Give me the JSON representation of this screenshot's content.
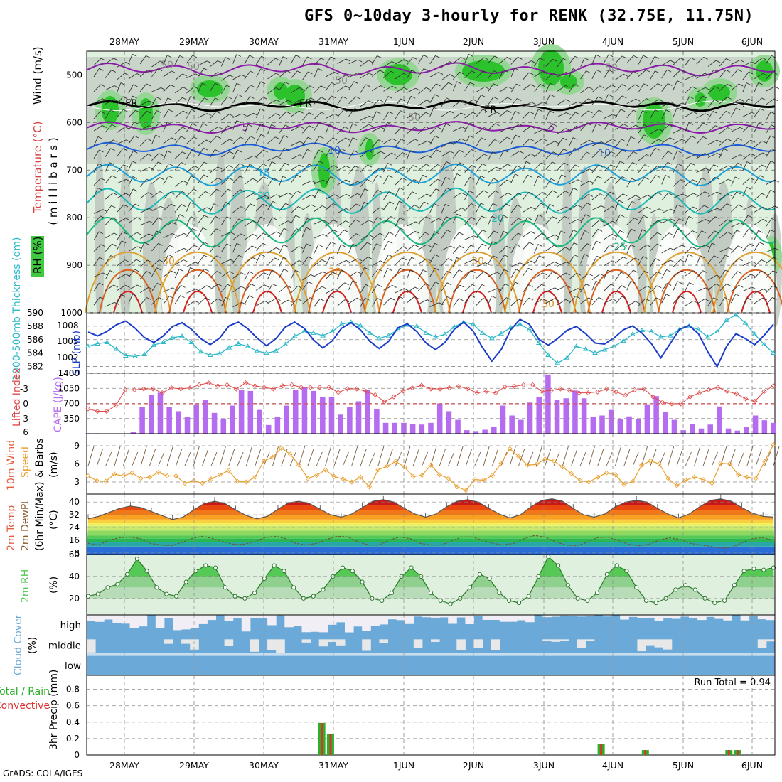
{
  "title": "GFS 0~10day 3-hourly for RENK (32.75E, 11.75N)",
  "credit": "GrADS: COLA/IGES",
  "dates": [
    "28MAY",
    "29MAY",
    "30MAY",
    "31MAY",
    "1JUN",
    "2JUN",
    "3JUN",
    "4JUN",
    "5JUN",
    "6JUN"
  ],
  "colors": {
    "rh_dark": "#2bc22b",
    "rh_mid": "#8fd68f",
    "rh_light": "#dff0df",
    "gray_band": "#b8c0b8",
    "slp": "#1a3cc8",
    "thickness": "#2ab8c8",
    "lifted": "#e04848",
    "cape": "#b66cf0",
    "wind": "#e8a030",
    "rh2m": "#55c855",
    "cloud": "#6baad8",
    "precip_total": "#2bb02b",
    "precip_conv": "#e03030"
  },
  "chart_data": [
    {
      "panel": "upper_air",
      "type": "heatmap",
      "ylabel_parts": [
        "RH (%)",
        "Temperature (°C)",
        "Wind (m/s)"
      ],
      "ylabel_units": "( m i l l i b a r s )",
      "yticks": [
        "500",
        "600",
        "700",
        "800",
        "900",
        "1000"
      ],
      "ylim": [
        1000,
        450
      ],
      "contour_labels": [
        "FR",
        "FR",
        "FR",
        "5",
        "5",
        "10",
        "10",
        "15",
        "20",
        "20",
        "25",
        "30",
        "30",
        "30",
        "30",
        "50",
        "50",
        "50",
        "50",
        "50"
      ]
    },
    {
      "panel": "slp_thickness",
      "type": "line",
      "ylabel_left": "1000-500mb Thickness (dm)",
      "ylabel_right": "SLP (mb)",
      "yticks_left": [
        "582",
        "584",
        "586",
        "588",
        "590"
      ],
      "yticks_right": [
        "1002",
        "1005",
        "1008"
      ],
      "ylim_left": [
        581,
        590
      ],
      "series": [
        {
          "name": "SLP (mb)",
          "axis": "right",
          "values": [
            1007.5,
            1006.8,
            1007.6,
            1008.8,
            1009.5,
            1008.2,
            1006.5,
            1005.6,
            1006.8,
            1008.5,
            1009.2,
            1008.0,
            1006.3,
            1005.2,
            1006.4,
            1008.6,
            1009.3,
            1008.1,
            1006.4,
            1005.0,
            1006.3,
            1008.4,
            1009.3,
            1008.2,
            1006.1,
            1004.6,
            1005.9,
            1008.2,
            1009.2,
            1007.9,
            1005.8,
            1004.5,
            1005.8,
            1008.3,
            1009.0,
            1007.6,
            1005.5,
            1004.3,
            1005.6,
            1008.0,
            1009.3,
            1007.7,
            1004.7,
            1002.2,
            1004.3,
            1007.9,
            1009.8,
            1008.9,
            1006.2,
            1005.1,
            1006.3,
            1007.8,
            1008.5,
            1007.2,
            1005.5,
            1005.3,
            1006.4,
            1007.9,
            1008.6,
            1007.3,
            1005.4,
            1002.8,
            1005.4,
            1008.0,
            1008.7,
            1007.2,
            1003.9,
            1001.2,
            1004.9,
            1007.2,
            1006.3,
            1005.2,
            1006.9,
            1008.9
          ]
        },
        {
          "name": "1000-500mb Thickness (dm)",
          "axis": "left",
          "values": [
            585.0,
            585.4,
            585.6,
            584.6,
            583.6,
            583.5,
            583.8,
            585.2,
            585.6,
            586.3,
            586.5,
            585.6,
            584.2,
            583.7,
            583.9,
            584.8,
            585.4,
            585.0,
            584.3,
            584.0,
            584.3,
            585.3,
            586.5,
            587.2,
            587.0,
            586.6,
            587.2,
            588.3,
            588.6,
            588.1,
            587.0,
            586.2,
            586.6,
            587.5,
            588.2,
            588.0,
            587.0,
            586.4,
            586.8,
            587.9,
            588.6,
            588.3,
            587.0,
            586.2,
            586.9,
            587.8,
            588.3,
            587.5,
            585.5,
            583.7,
            582.5,
            583.3,
            585.0,
            584.6,
            584.0,
            584.5,
            585.0,
            585.8,
            586.8,
            587.4,
            587.2,
            586.4,
            586.6,
            587.5,
            588.0,
            587.5,
            586.4,
            587.2,
            588.9,
            589.7,
            588.5,
            586.8,
            585.3,
            584.0
          ]
        }
      ]
    },
    {
      "panel": "lifted_cape",
      "type": "bar",
      "ylabel_left": "Lifted Index",
      "ylabel_right": "CAPE (J/kg)",
      "yticks_left": [
        "-3",
        "0",
        "3",
        "6"
      ],
      "yticks_right": [
        "350",
        "700",
        "1050",
        "1400"
      ],
      "ylim_cape": [
        0,
        1400
      ],
      "series": [
        {
          "name": "CAPE (J/kg)",
          "values": [
            10,
            10,
            0,
            0,
            0,
            50,
            620,
            900,
            950,
            620,
            520,
            380,
            680,
            780,
            480,
            330,
            650,
            1010,
            990,
            550,
            200,
            380,
            650,
            1020,
            1080,
            990,
            850,
            850,
            440,
            620,
            750,
            1010,
            560,
            250,
            250,
            250,
            230,
            210,
            250,
            700,
            520,
            320,
            80,
            60,
            90,
            160,
            650,
            420,
            320,
            720,
            850,
            1370,
            780,
            820,
            1000,
            820,
            380,
            420,
            550,
            330,
            400,
            330,
            680,
            870,
            500,
            320,
            80,
            230,
            120,
            210,
            630,
            120,
            70,
            150,
            420,
            310,
            250
          ]
        },
        {
          "name": "Lifted Index",
          "values": [
            1.0,
            1.5,
            1.5,
            0.3,
            -2.8,
            -2.8,
            -3.0,
            -3.0,
            -2.2,
            -3.2,
            -3.0,
            -3.2,
            -3.8,
            -4.2,
            -3.6,
            -3.8,
            -3.0,
            -4.2,
            -3.6,
            -3.3,
            -3.0,
            -3.6,
            -3.8,
            -3.3,
            -3.3,
            -3.3,
            -3.3,
            -2.3,
            -3.0,
            -3.0,
            -2.5,
            -1.8,
            -0.4,
            -1.4,
            -2.6,
            -3.2,
            -3.7,
            -3.0,
            -3.0,
            -3.2,
            -3.5,
            -3.0,
            -2.2,
            -2.5,
            -2.2,
            -3.4,
            -3.5,
            -3.8,
            -3.8,
            -2.5,
            -2.7,
            -3.0,
            -2.7,
            -2.2,
            -2.2,
            -2.4,
            -3.0,
            -2.4,
            -1.7,
            -2.8,
            -3.0,
            -1.4,
            -0.3,
            0.0,
            0.0,
            -1.4,
            -2.2,
            -2.8,
            -3.3,
            -2.5,
            -2.0,
            -1.0,
            -0.5,
            -2.5,
            -3.6
          ]
        }
      ]
    },
    {
      "panel": "wind10m",
      "type": "line",
      "ylabel": "10m Wind Speed & Barbs (m/s)",
      "yticks": [
        "3",
        "6",
        "9"
      ],
      "ylim": [
        1,
        11
      ],
      "series": [
        {
          "name": "10m Wind Speed",
          "values": [
            4.0,
            3.2,
            3.1,
            4.3,
            4.0,
            4.5,
            3.6,
            3.8,
            4.6,
            4.0,
            4.0,
            2.8,
            3.2,
            2.8,
            3.5,
            4.2,
            4.9,
            3.1,
            3.0,
            3.8,
            6.5,
            7.1,
            8.6,
            7.6,
            5.8,
            3.6,
            4.1,
            5.0,
            3.9,
            3.5,
            3.0,
            3.8,
            2.2,
            5.0,
            5.6,
            6.4,
            5.5,
            3.9,
            4.1,
            5.8,
            4.2,
            3.6,
            2.2,
            1.6,
            3.4,
            3.3,
            4.1,
            6.1,
            8.5,
            7.2,
            5.8,
            5.9,
            6.8,
            6.5,
            5.5,
            4.4,
            3.2,
            3.0,
            3.8,
            4.5,
            4.2,
            2.6,
            3.1,
            5.8,
            6.5,
            6.0,
            3.6,
            2.4,
            3.3,
            3.8,
            3.4,
            2.8,
            6.1,
            6.0,
            4.2,
            3.8,
            3.6,
            6.4,
            9.2
          ]
        }
      ]
    },
    {
      "panel": "temp2m",
      "type": "area",
      "ylabel": "2m Temp / 2m DewPt (6hr Min/Max) (°C)",
      "yticks": [
        "8",
        "16",
        "24",
        "32",
        "40"
      ],
      "ylim": [
        7,
        45
      ],
      "series": [
        {
          "name": "2m Temp",
          "values": [
            29.5,
            31,
            33.5,
            36,
            37.5,
            36.5,
            34,
            31.5,
            29,
            30.5,
            35,
            39,
            40.5,
            39,
            35,
            31.5,
            29.5,
            31,
            35.5,
            39.5,
            40.5,
            39,
            35.5,
            32,
            30.5,
            32.5,
            36.5,
            40.5,
            41.5,
            40,
            36,
            32.5,
            30.5,
            32.5,
            37,
            40.5,
            41.5,
            40,
            36,
            32.5,
            30,
            32,
            37,
            41,
            42,
            40.5,
            36,
            32,
            30.5,
            32.5,
            37,
            40,
            41,
            40,
            36,
            32.5,
            30,
            32.5,
            37,
            41,
            42,
            40.5,
            36.5,
            33,
            31,
            30.5
          ]
        },
        {
          "name": "2m DewPt",
          "values": [
            14,
            13,
            16,
            17.5,
            18,
            17,
            14,
            13,
            12.5,
            14.5,
            17,
            18.5,
            17,
            15,
            13.5,
            13.5,
            15,
            17.5,
            18.5,
            17,
            14,
            13,
            14,
            16.5,
            18.5,
            18,
            15,
            13,
            13,
            16,
            18,
            17,
            14,
            13,
            13,
            15.5,
            18,
            18,
            16,
            14,
            13,
            14,
            17,
            19,
            18,
            15,
            13,
            12.5,
            14.5,
            17.5,
            18,
            16,
            13.5,
            12.5,
            13.5,
            16,
            17.5,
            16.5,
            14,
            13,
            12,
            11,
            11.5,
            14.5,
            17,
            17.5,
            16
          ]
        }
      ]
    },
    {
      "panel": "rh2m",
      "type": "area",
      "ylabel": "2m RH (%)",
      "yticks": [
        "20",
        "40",
        "60"
      ],
      "ylim": [
        5,
        60
      ],
      "series": [
        {
          "name": "2m RH",
          "values": [
            22,
            24,
            30,
            33,
            42,
            56,
            45,
            30,
            24,
            22,
            35,
            45,
            50,
            48,
            30,
            22,
            20,
            25,
            38,
            50,
            45,
            30,
            20,
            22,
            28,
            40,
            48,
            45,
            35,
            20,
            18,
            25,
            40,
            48,
            40,
            25,
            18,
            15,
            20,
            30,
            42,
            38,
            25,
            18,
            16,
            22,
            40,
            58,
            50,
            32,
            20,
            18,
            25,
            42,
            50,
            45,
            30,
            18,
            16,
            20,
            28,
            32,
            28,
            20,
            16,
            18,
            32,
            45,
            47,
            46,
            48
          ]
        }
      ]
    },
    {
      "panel": "cloud",
      "type": "heatmap",
      "ylabel": "Cloud Cover (%)",
      "levels": [
        "high",
        "middle",
        "low"
      ]
    },
    {
      "panel": "precip",
      "type": "bar",
      "ylabel_parts": [
        "Total / Rain",
        "Convective"
      ],
      "ylabel": "3hr Precip (mm)",
      "yticks": [
        "0",
        "0.2",
        "0.4",
        "0.6",
        "0.8"
      ],
      "ylim": [
        0,
        0.97
      ],
      "annotation": "Run Total = 0.94",
      "bars": [
        {
          "date": "31MAY",
          "hour": -4,
          "total": 0.39,
          "convective": 0.39
        },
        {
          "date": "31MAY",
          "hour": -1,
          "total": 0.26,
          "convective": 0.26
        },
        {
          "date": "4JUN",
          "hour": -4,
          "total": 0.13,
          "convective": 0.13
        },
        {
          "date": "5JUN",
          "hour": -13,
          "total": 0.06,
          "convective": 0.06
        },
        {
          "date": "6JUN",
          "hour": -8,
          "total": 0.06,
          "convective": 0.06
        },
        {
          "date": "6JUN",
          "hour": -5,
          "total": 0.06,
          "convective": 0.06
        }
      ]
    }
  ]
}
